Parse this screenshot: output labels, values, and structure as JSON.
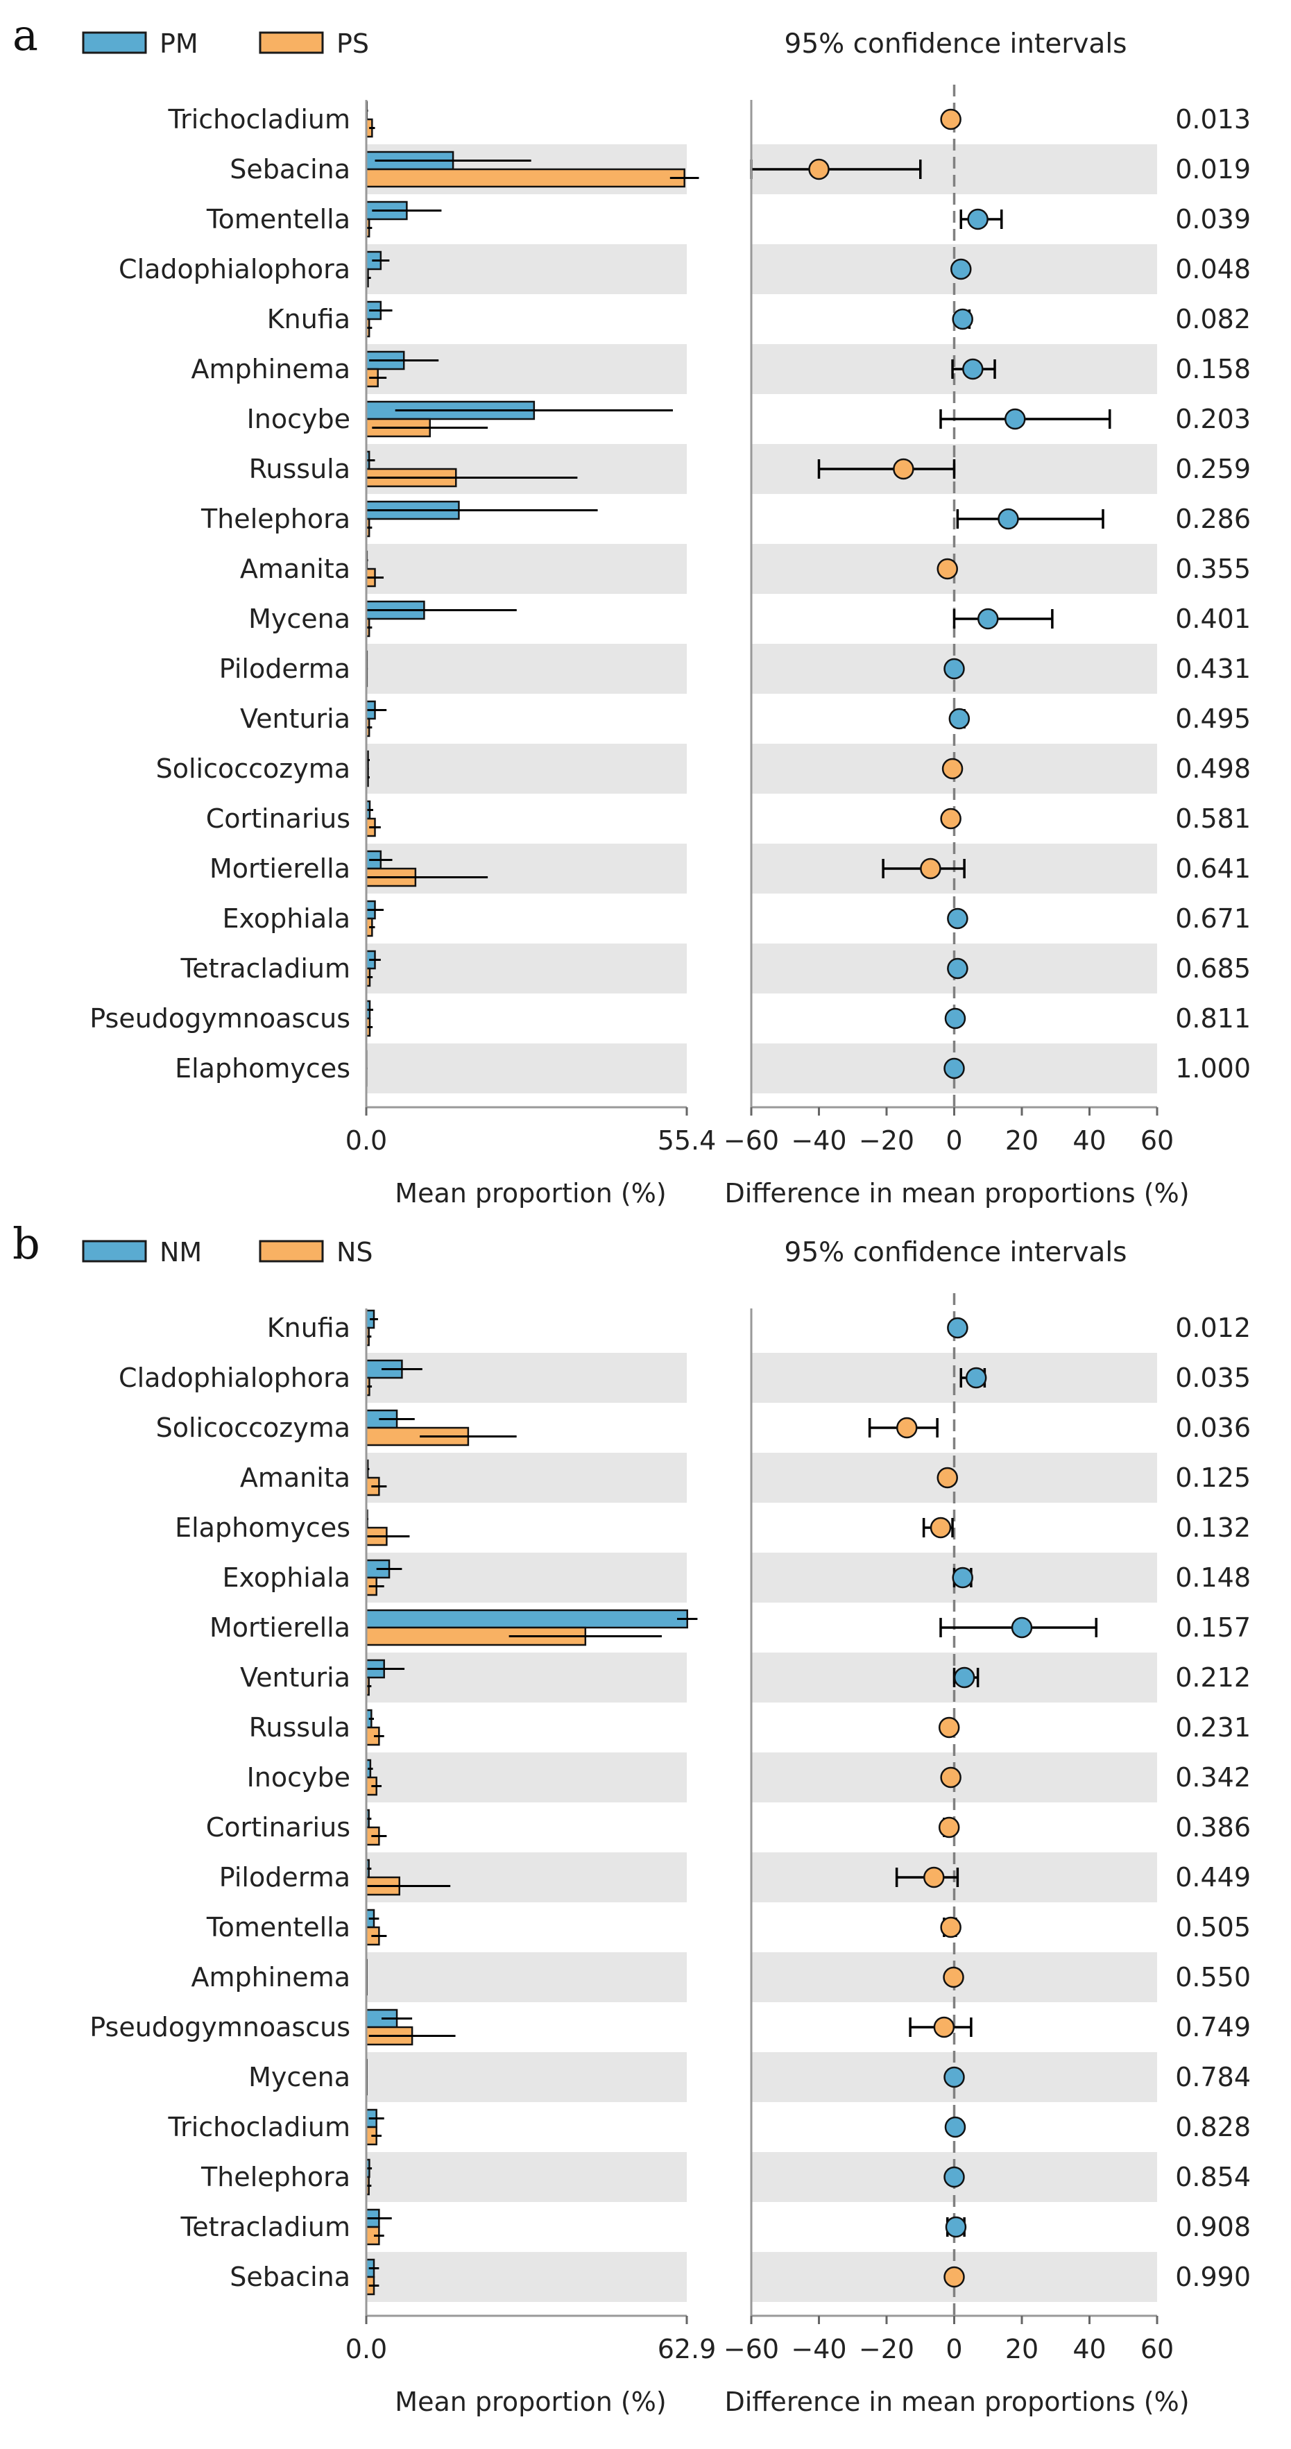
{
  "figure": {
    "panels": [
      "a",
      "b"
    ]
  },
  "colors": {
    "group1": "#5aabd1",
    "group2": "#f8b163",
    "band": "#e6e6e6",
    "axis": "#999999",
    "zero_line": "#808080",
    "text": "#222222"
  },
  "chart_data": [
    {
      "type": "bar",
      "panel_label": "a",
      "legend": [
        "PM",
        "PS"
      ],
      "ci_title": "95% confidence intervals",
      "left_xlabel": "Mean proportion (%)",
      "right_xlabel": "Difference in mean proportions (%)",
      "left_xlim": [
        0,
        55.4
      ],
      "left_xticklabels": [
        "0.0",
        "55.4"
      ],
      "right_xlim": [
        -60,
        60
      ],
      "right_xticks": [
        -60,
        -40,
        -20,
        0,
        20,
        40,
        60
      ],
      "right_xticklabels": [
        "−60",
        "−40",
        "−20",
        "0",
        "20",
        "40",
        "60"
      ],
      "categories": [
        "Trichocladium",
        "Sebacina",
        "Tomentella",
        "Cladophialophora",
        "Knufia",
        "Amphinema",
        "Inocybe",
        "Russula",
        "Thelephora",
        "Amanita",
        "Mycena",
        "Piloderma",
        "Venturia",
        "Solicoccozyma",
        "Cortinarius",
        "Mortierella",
        "Exophiala",
        "Tetracladium",
        "Pseudogymnoascus",
        "Elaphomyces"
      ],
      "series": [
        {
          "name": "PM",
          "values": [
            0.1,
            15.0,
            7.0,
            2.5,
            2.5,
            6.5,
            29.0,
            0.5,
            16.0,
            0.1,
            10.0,
            0.1,
            1.5,
            0.3,
            0.6,
            2.5,
            1.5,
            1.5,
            0.6,
            0.05
          ],
          "err": [
            0.2,
            13.5,
            6.0,
            1.5,
            2.0,
            6.0,
            24.0,
            1.0,
            24.0,
            0.2,
            16.0,
            0.1,
            2.0,
            0.3,
            0.6,
            2.0,
            1.5,
            1.0,
            0.6,
            0.05
          ]
        },
        {
          "name": "PS",
          "values": [
            1.0,
            55.0,
            0.5,
            0.3,
            0.5,
            2.0,
            11.0,
            15.5,
            0.5,
            1.5,
            0.5,
            0.1,
            0.5,
            0.3,
            1.5,
            8.5,
            1.0,
            0.6,
            0.6,
            0.05
          ],
          "err": [
            0.5,
            2.5,
            0.5,
            0.5,
            0.5,
            1.5,
            10.0,
            21.0,
            0.5,
            1.5,
            0.5,
            0.1,
            0.5,
            0.3,
            1.0,
            12.5,
            0.5,
            0.5,
            0.5,
            0.05
          ]
        }
      ],
      "diff": [
        -1,
        -40,
        7,
        2,
        2.5,
        5.5,
        18,
        -15,
        16,
        -2,
        10,
        0,
        1.5,
        -0.5,
        -1,
        -7,
        1,
        1,
        0.3,
        0
      ],
      "ci_low": [
        -1,
        -60,
        2,
        2,
        1.5,
        -0.5,
        -4,
        -40,
        1,
        -3,
        0,
        0,
        0.5,
        -0.5,
        -1,
        -21,
        1,
        1,
        0.3,
        0
      ],
      "ci_high": [
        -1,
        -10,
        14,
        2,
        4.5,
        12,
        46,
        0,
        44,
        -1,
        29,
        0,
        3,
        -0.5,
        -1,
        3,
        1,
        1,
        0.3,
        0
      ],
      "diff_group": [
        "PS",
        "PS",
        "PM",
        "PM",
        "PM",
        "PM",
        "PM",
        "PS",
        "PM",
        "PS",
        "PM",
        "PM",
        "PM",
        "PS",
        "PS",
        "PS",
        "PM",
        "PM",
        "PM",
        "PM"
      ],
      "p_values": [
        "0.013",
        "0.019",
        "0.039",
        "0.048",
        "0.082",
        "0.158",
        "0.203",
        "0.259",
        "0.286",
        "0.355",
        "0.401",
        "0.431",
        "0.495",
        "0.498",
        "0.581",
        "0.641",
        "0.671",
        "0.685",
        "0.811",
        "1.000"
      ]
    },
    {
      "type": "bar",
      "panel_label": "b",
      "legend": [
        "NM",
        "NS"
      ],
      "ci_title": "95% confidence intervals",
      "left_xlabel": "Mean proportion (%)",
      "right_xlabel": "Difference in mean proportions (%)",
      "left_xlim": [
        0,
        62.9
      ],
      "left_xticklabels": [
        "0.0",
        "62.9"
      ],
      "right_xlim": [
        -60,
        60
      ],
      "right_xticks": [
        -60,
        -40,
        -20,
        0,
        20,
        40,
        60
      ],
      "right_xticklabels": [
        "−60",
        "−40",
        "−20",
        "0",
        "20",
        "40",
        "60"
      ],
      "categories": [
        "Knufia",
        "Cladophialophora",
        "Solicoccozyma",
        "Amanita",
        "Elaphomyces",
        "Exophiala",
        "Mortierella",
        "Venturia",
        "Russula",
        "Inocybe",
        "Cortinarius",
        "Piloderma",
        "Tomentella",
        "Amphinema",
        "Pseudogymnoascus",
        "Mycena",
        "Trichocladium",
        "Thelephora",
        "Tetracladium",
        "Sebacina"
      ],
      "series": [
        {
          "name": "NM",
          "values": [
            1.5,
            7.0,
            6.0,
            0.3,
            0.2,
            4.5,
            63.0,
            3.5,
            1.0,
            0.8,
            0.5,
            0.5,
            1.5,
            0.1,
            6.0,
            0.1,
            2.0,
            0.6,
            2.5,
            1.5
          ],
          "err": [
            0.8,
            4.0,
            3.5,
            0.3,
            0.2,
            2.5,
            2.0,
            4.0,
            0.5,
            0.5,
            0.5,
            0.5,
            1.0,
            0.1,
            3.0,
            0.1,
            1.5,
            0.5,
            2.5,
            1.0
          ]
        },
        {
          "name": "NS",
          "values": [
            0.5,
            0.6,
            20.0,
            2.5,
            4.0,
            2.0,
            43.0,
            0.5,
            2.5,
            2.0,
            2.5,
            6.5,
            2.5,
            0.1,
            9.0,
            0.1,
            2.0,
            0.5,
            2.5,
            1.5
          ],
          "err": [
            0.5,
            0.5,
            9.5,
            1.5,
            4.5,
            1.5,
            15.0,
            0.5,
            1.0,
            1.0,
            1.5,
            10.0,
            1.5,
            0.1,
            8.5,
            0.1,
            1.0,
            0.5,
            1.0,
            1.0
          ]
        }
      ],
      "diff": [
        1,
        6.5,
        -14,
        -2,
        -4,
        2.5,
        20,
        3,
        -1.5,
        -1,
        -1.5,
        -6,
        -1,
        -0.2,
        -3,
        0,
        0.3,
        0,
        0.5,
        0
      ],
      "ci_low": [
        1,
        2,
        -25,
        -3,
        -9,
        0,
        -4,
        0,
        -2,
        -1,
        -3,
        -17,
        -3,
        -0.2,
        -13,
        0,
        0.3,
        0,
        -2,
        0
      ],
      "ci_high": [
        1,
        9,
        -5,
        -1,
        -0.5,
        5,
        42,
        7,
        -1,
        -1,
        -0.5,
        1,
        0.5,
        -0.2,
        5,
        0,
        0.3,
        0,
        3,
        0
      ],
      "diff_group": [
        "NM",
        "NM",
        "NS",
        "NS",
        "NS",
        "NM",
        "NM",
        "NM",
        "NS",
        "NS",
        "NS",
        "NS",
        "NS",
        "NS",
        "NS",
        "NM",
        "NM",
        "NM",
        "NM",
        "NS"
      ],
      "p_values": [
        "0.012",
        "0.035",
        "0.036",
        "0.125",
        "0.132",
        "0.148",
        "0.157",
        "0.212",
        "0.231",
        "0.342",
        "0.386",
        "0.449",
        "0.505",
        "0.550",
        "0.749",
        "0.784",
        "0.828",
        "0.854",
        "0.908",
        "0.990"
      ]
    }
  ]
}
